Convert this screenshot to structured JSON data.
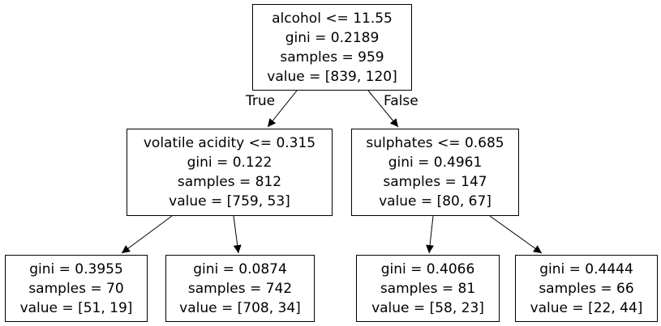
{
  "tree": {
    "root": {
      "split": "alcohol <= 11.55",
      "gini": "gini = 0.2189",
      "samples": "samples = 959",
      "value": "value = [839, 120]"
    },
    "left": {
      "split": "volatile acidity <= 0.315",
      "gini": "gini = 0.122",
      "samples": "samples = 812",
      "value": "value = [759, 53]"
    },
    "right": {
      "split": "sulphates <= 0.685",
      "gini": "gini = 0.4961",
      "samples": "samples = 147",
      "value": "value = [80, 67]"
    },
    "leaf_ll": {
      "gini": "gini = 0.3955",
      "samples": "samples = 70",
      "value": "value = [51, 19]"
    },
    "leaf_lr": {
      "gini": "gini = 0.0874",
      "samples": "samples = 742",
      "value": "value = [708, 34]"
    },
    "leaf_rl": {
      "gini": "gini = 0.4066",
      "samples": "samples = 81",
      "value": "value = [58, 23]"
    },
    "leaf_rr": {
      "gini": "gini = 0.4444",
      "samples": "samples = 66",
      "value": "value = [22, 44]"
    }
  },
  "edges": {
    "true_label": "True",
    "false_label": "False"
  },
  "colors": {
    "stroke": "#000000",
    "fill": "#ffffff"
  }
}
